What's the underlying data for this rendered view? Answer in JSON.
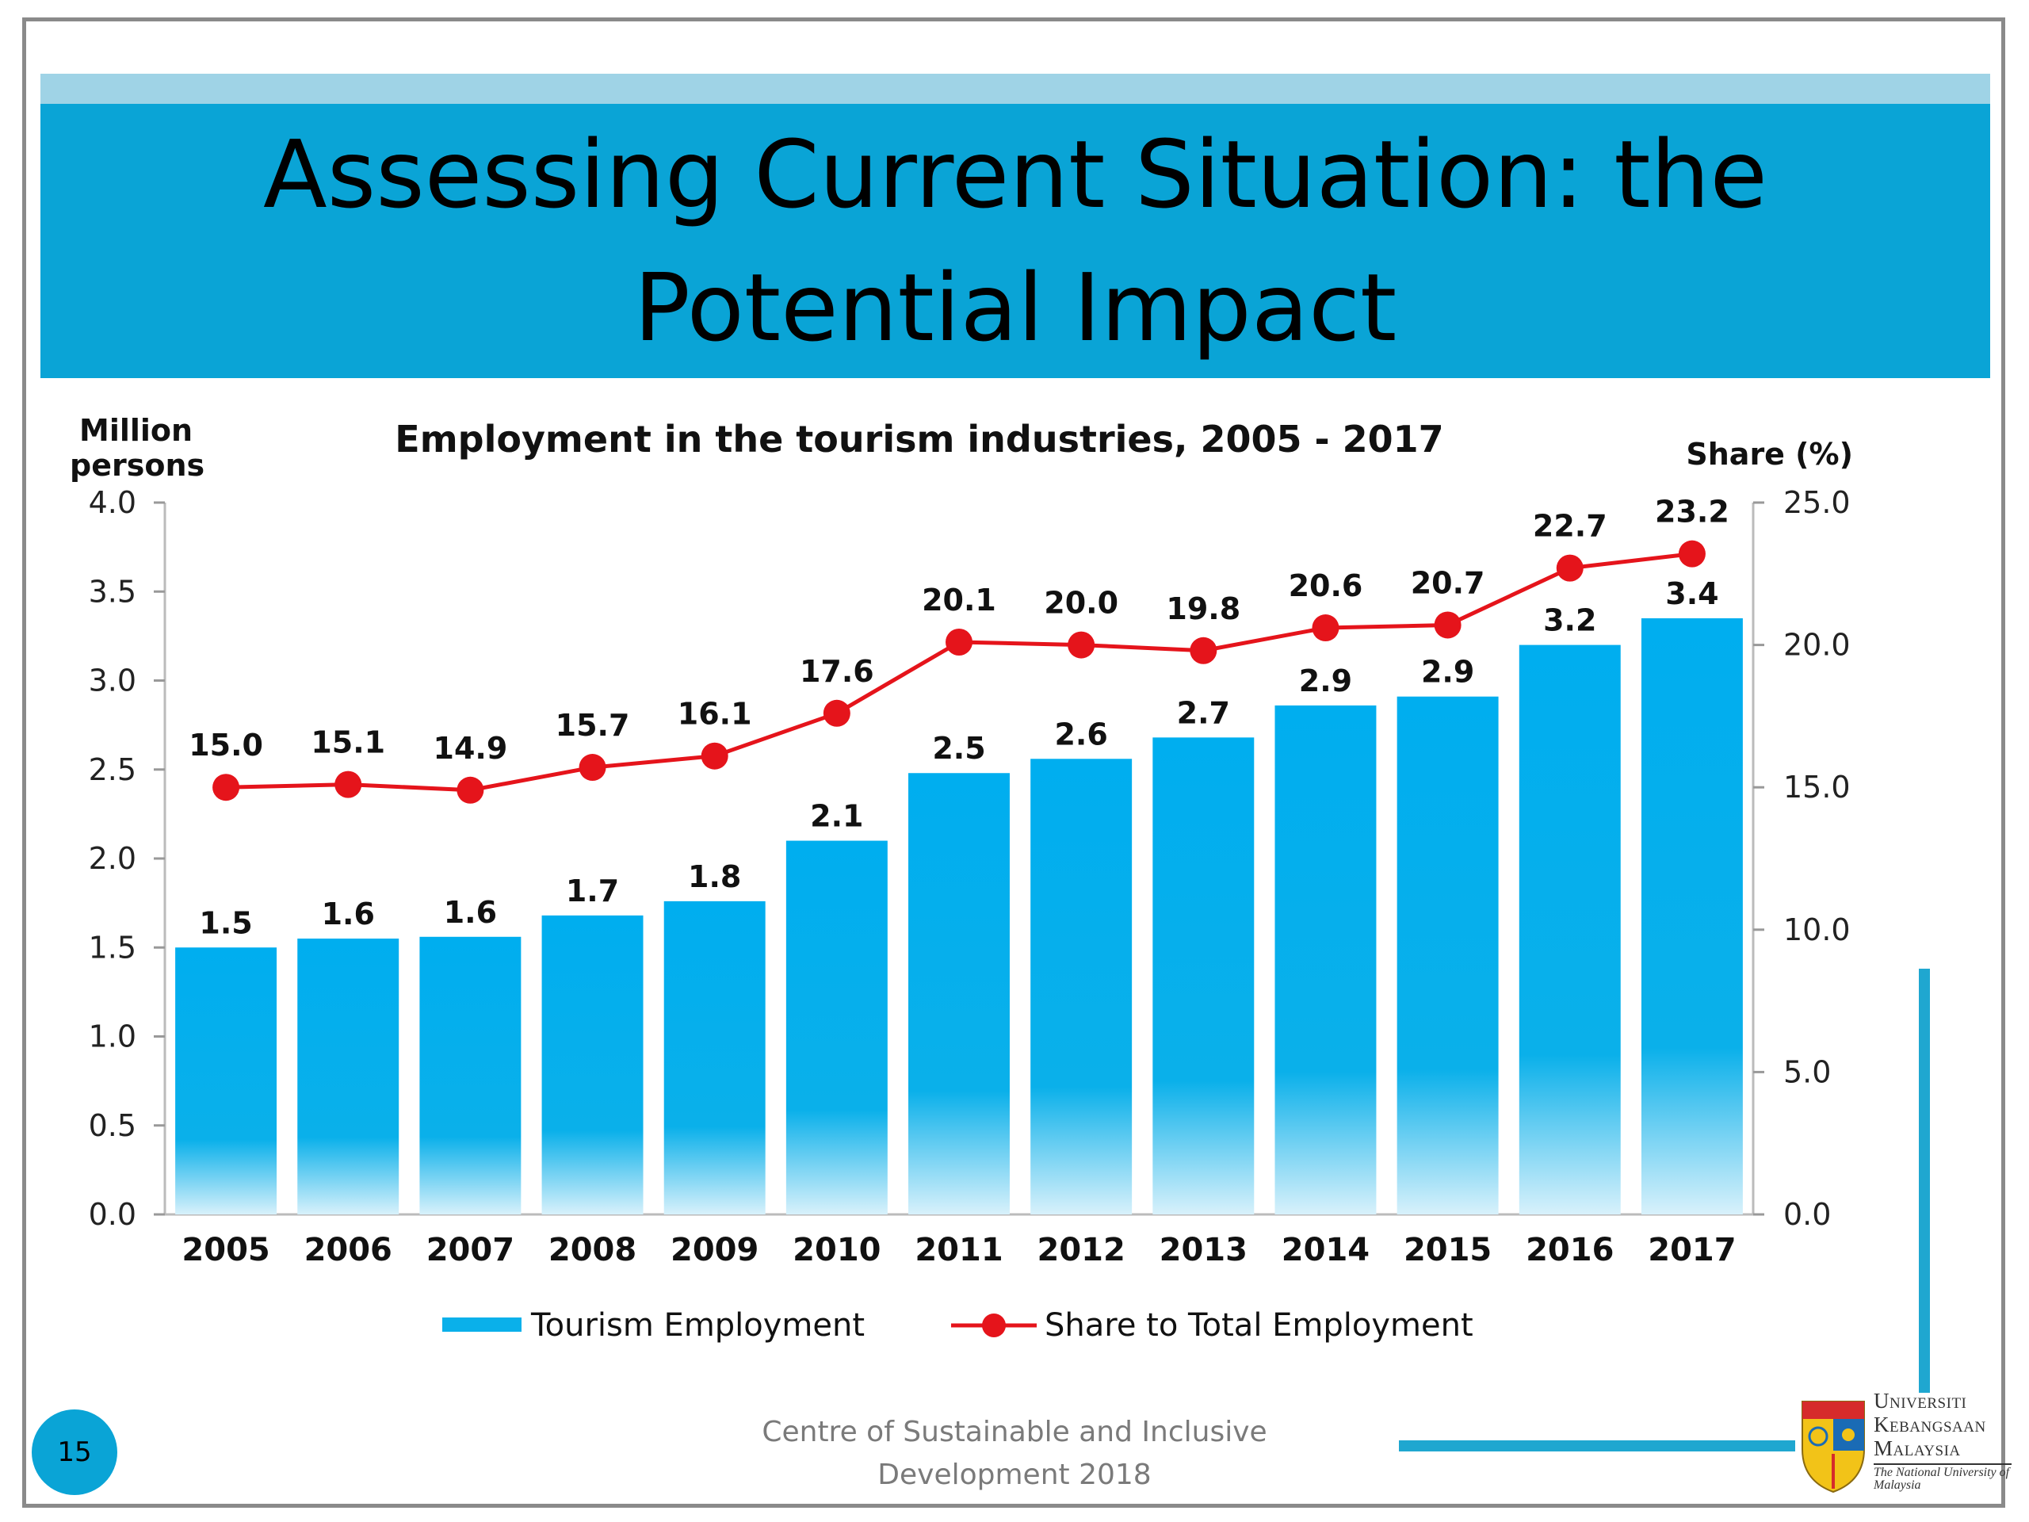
{
  "slide": {
    "title": "Assessing Current Situation: the Potential Impact",
    "page_number": "15",
    "footer": "Centre of Sustainable and Inclusive Development 2018",
    "logo": {
      "line1": "Universiti",
      "line2": "Kebangsaan",
      "line3": "Malaysia",
      "tagline": "The National University of Malaysia"
    }
  },
  "colors": {
    "title_band": "#0aa4d6",
    "bar": "#0ab0ea",
    "line": "#e5141b",
    "accent": "#1fa7d0"
  },
  "chart_data": {
    "type": "bar",
    "title": "Employment in the tourism industries, 2005 - 2017",
    "ylabel_left": "Million persons",
    "ylabel_right": "Share (%)",
    "xlabel": "",
    "categories": [
      "2005",
      "2006",
      "2007",
      "2008",
      "2009",
      "2010",
      "2011",
      "2012",
      "2013",
      "2014",
      "2015",
      "2016",
      "2017"
    ],
    "ylim_left": [
      0,
      4.0
    ],
    "yticks_left": [
      "0.0",
      "0.5",
      "1.0",
      "1.5",
      "2.0",
      "2.5",
      "3.0",
      "3.5",
      "4.0"
    ],
    "ylim_right": [
      0,
      25.0
    ],
    "yticks_right": [
      "0.0",
      "5.0",
      "10.0",
      "15.0",
      "20.0",
      "25.0"
    ],
    "series": [
      {
        "name": "Tourism Employment",
        "type": "bar",
        "axis": "left",
        "values": [
          1.5,
          1.55,
          1.56,
          1.68,
          1.76,
          2.1,
          2.48,
          2.56,
          2.68,
          2.86,
          2.91,
          3.2,
          3.35
        ],
        "labels": [
          "1.5",
          "1.6",
          "1.6",
          "1.7",
          "1.8",
          "2.1",
          "2.5",
          "2.6",
          "2.7",
          "2.9",
          "2.9",
          "3.2",
          "3.4"
        ]
      },
      {
        "name": "Share to Total Employment",
        "type": "line",
        "axis": "right",
        "values": [
          15.0,
          15.1,
          14.9,
          15.7,
          16.1,
          17.6,
          20.1,
          20.0,
          19.8,
          20.6,
          20.7,
          22.7,
          23.2
        ],
        "labels": [
          "15.0",
          "15.1",
          "14.9",
          "15.7",
          "16.1",
          "17.6",
          "20.1",
          "20.0",
          "19.8",
          "20.6",
          "20.7",
          "22.7",
          "23.2"
        ]
      }
    ],
    "legend_position": "bottom",
    "grid": false
  }
}
